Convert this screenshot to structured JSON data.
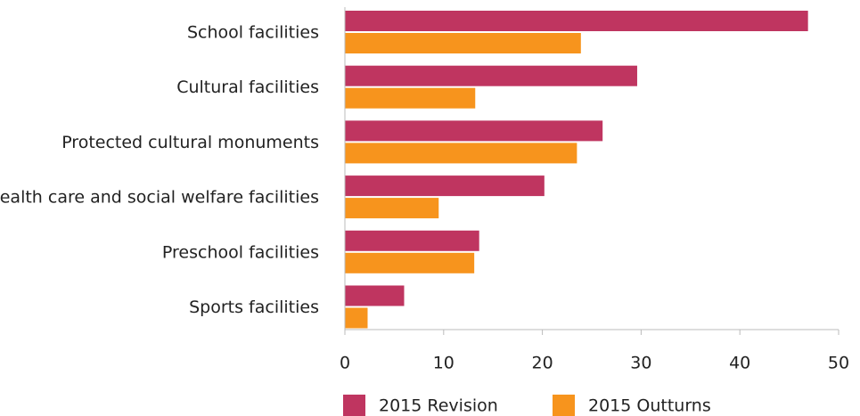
{
  "chart_data": {
    "type": "barh",
    "categories": [
      "School facilities",
      "Cultural facilities",
      "Protected cultural monuments",
      "Health care and social welfare facilities",
      "Preschool facilities",
      "Sports facilities"
    ],
    "series": [
      {
        "name": "2015 Revision",
        "color": "#bf3560",
        "values": [
          46.9,
          29.6,
          26.1,
          20.2,
          13.6,
          6.0
        ]
      },
      {
        "name": "2015 Outturns",
        "color": "#f7941d",
        "values": [
          23.9,
          13.2,
          23.5,
          9.5,
          13.1,
          2.3
        ]
      }
    ],
    "xlim": [
      0,
      50
    ],
    "xticks": [
      0,
      10,
      20,
      30,
      40,
      50
    ],
    "grid": false,
    "legend": "bottom"
  }
}
